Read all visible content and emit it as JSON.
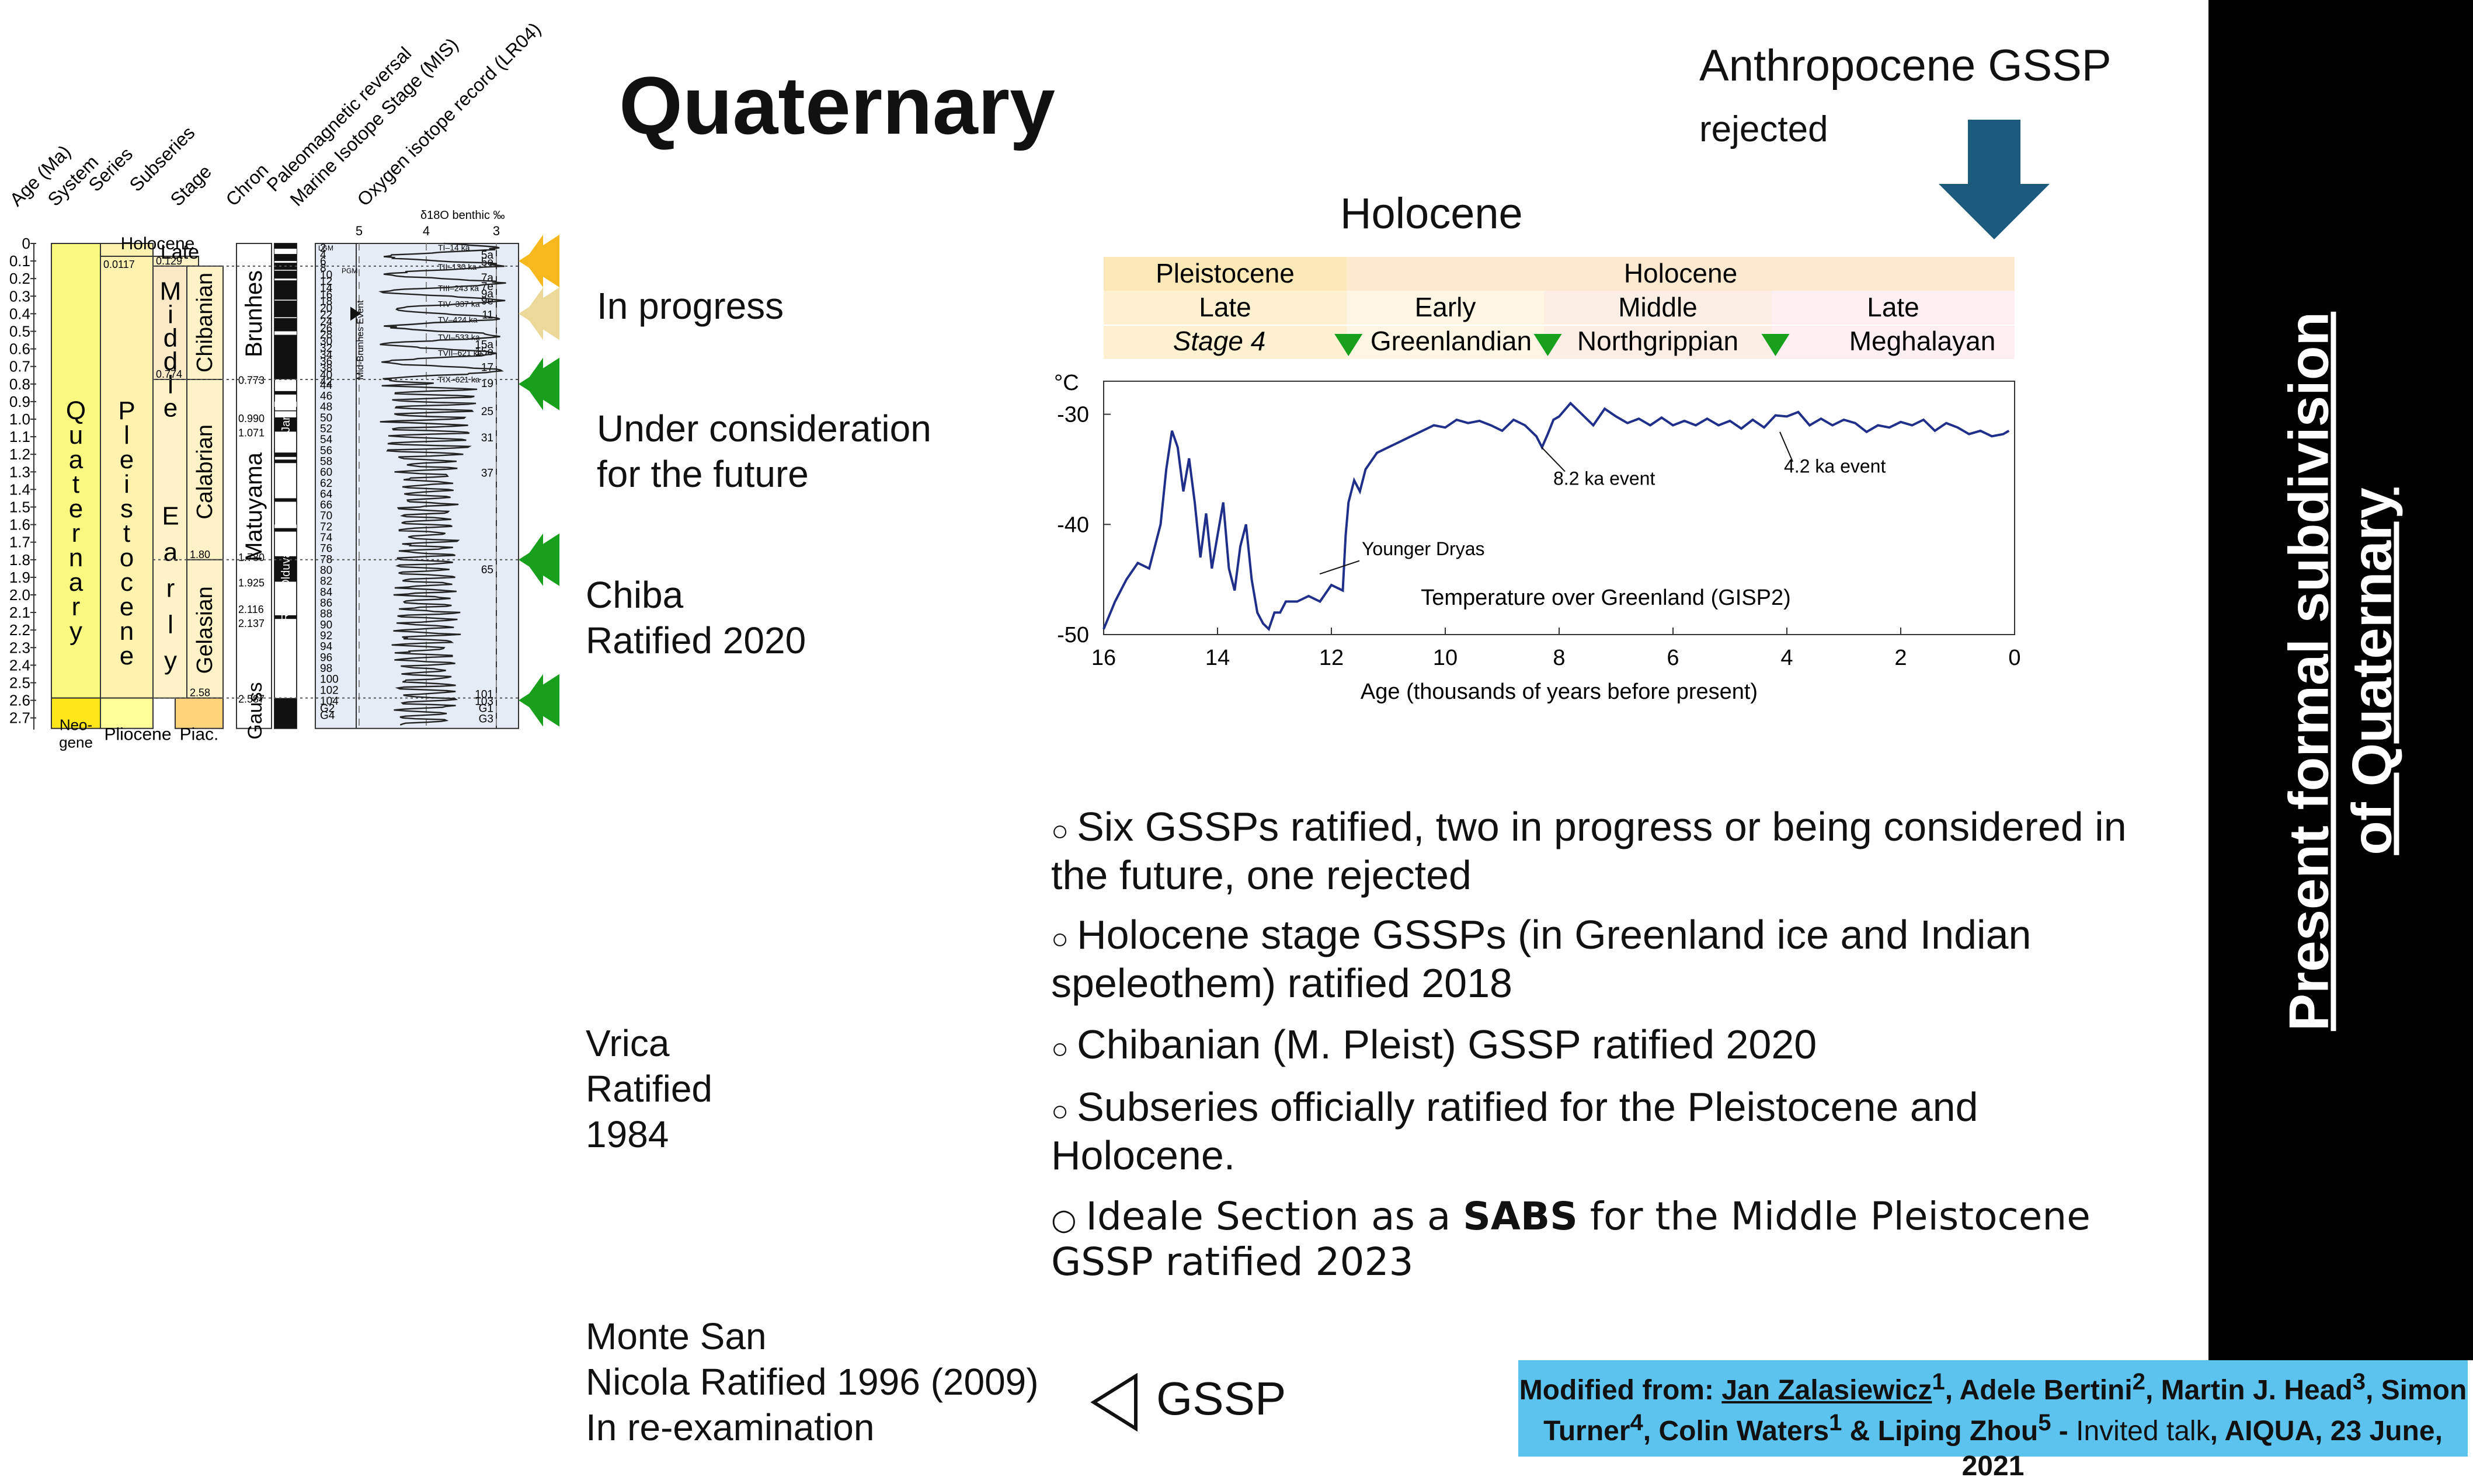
{
  "title": "Quaternary",
  "anthropocene": {
    "line1": "Anthropocene GSSP",
    "line2": "rejected"
  },
  "holocene_title": "Holocene",
  "strat_column": {
    "headers": [
      "Age (Ma)",
      "System",
      "Series",
      "Subseries",
      "Stage",
      "Chron",
      "Paleomagnetic reversal",
      "Marine Isotope Stage (MIS)",
      "Oxygen isotope record (LR04)"
    ],
    "o18_label": "δ18O benthic ‰",
    "o18_ticks": [
      "5",
      "4",
      "3"
    ],
    "age_ticks": [
      "0",
      "0.1",
      "0.2",
      "0.3",
      "0.4",
      "0.5",
      "0.6",
      "0.7",
      "0.8",
      "0.9",
      "1.0",
      "1.1",
      "1.2",
      "1.3",
      "1.4",
      "1.5",
      "1.6",
      "1.7",
      "1.8",
      "1.9",
      "2.0",
      "2.1",
      "2.2",
      "2.3",
      "2.4",
      "2.5",
      "2.6",
      "2.7"
    ],
    "system": "Quaternary",
    "system_neogene": "Neo-gene",
    "series": "Pleistocene",
    "series_pliocene": "Pliocene",
    "holocene": "Holocene",
    "holocene_age": "0.0117",
    "subseries": {
      "late": "Late",
      "middle": "Middle",
      "early": "Early"
    },
    "subseries_ages": {
      "late": "0.129",
      "middle": "0.774",
      "early": "2.58"
    },
    "stages": {
      "chibanian": "Chibanian",
      "calabrian": "Calabrian",
      "gelasian": "Gelasian",
      "piac": "Piac."
    },
    "stage_ages": {
      "calabrian": "1.80",
      "gelasian": "2.58"
    },
    "chrons": {
      "brunhes": "Brunhes",
      "matuyama": "Matuyama",
      "gauss": "Gauss"
    },
    "chron_ages": [
      "0.773",
      "0.990",
      "1.071",
      "1.780",
      "1.925",
      "2.116",
      "2.137",
      "2.587"
    ],
    "subchrons": {
      "jar": "Jar",
      "olduvai": "Olduvai",
      "r": "R"
    },
    "mis_left": [
      "2",
      "4",
      "6",
      "8",
      "10",
      "12",
      "14",
      "16",
      "18",
      "20",
      "22",
      "24",
      "26",
      "28",
      "30",
      "32",
      "34",
      "36",
      "38",
      "40",
      "42",
      "44",
      "46",
      "48",
      "50",
      "52",
      "54",
      "56",
      "58",
      "60",
      "62",
      "64",
      "66",
      "70",
      "72",
      "74",
      "76",
      "78",
      "80",
      "82",
      "84",
      "86",
      "88",
      "90",
      "92",
      "94",
      "96",
      "98",
      "100",
      "102",
      "104",
      "G2",
      "G4"
    ],
    "mis_right": [
      "5a",
      "5e",
      "7a",
      "7e",
      "9a",
      "9e",
      "11",
      "15a",
      "15e",
      "17",
      "19",
      "25",
      "31",
      "37",
      "65",
      "101",
      "103",
      "G1",
      "G3"
    ],
    "terminations": [
      "TI–14 ka",
      "TII–130 ka",
      "TIII–243 ka",
      "TIV–337 ka",
      "TV–424 ka",
      "TVI–533 ka",
      "TVII–621 ka",
      "TIX–621 ka"
    ],
    "lgm": "LGM",
    "pgm": "PGM",
    "mbe": "Mid-Brunhes Event"
  },
  "status_labels": [
    {
      "lines": [
        "In progress"
      ],
      "color": "#f6b81c"
    },
    {
      "lines": [
        "Under consideration",
        "for the future"
      ],
      "color": "#ecd999"
    },
    {
      "lines": [
        "Chiba",
        "Ratified 2020"
      ],
      "color": "#18a01c"
    },
    {
      "lines": [
        "Vrica",
        "Ratified",
        "1984"
      ],
      "color": "#18a01c"
    },
    {
      "lines": [
        "Monte San",
        "Nicola Ratified 1996 (2009)",
        "In re-examination"
      ],
      "color": "#18a01c"
    }
  ],
  "holo_table": {
    "row1": [
      "Pleistocene",
      "Holocene"
    ],
    "row2": [
      "Late",
      "Early",
      "Middle",
      "Late"
    ],
    "row3": [
      "Stage 4",
      "Greenlandian",
      "Northgrippian",
      "Meghalayan"
    ]
  },
  "chart_data": {
    "type": "line",
    "title": "Temperature over Greenland (GISP2)",
    "xlabel": "Age (thousands of years before present)",
    "ylabel": "°C",
    "xlim": [
      16,
      0
    ],
    "ylim": [
      -50,
      -27
    ],
    "xticks": [
      "16",
      "14",
      "12",
      "10",
      "8",
      "6",
      "4",
      "2",
      "0"
    ],
    "yticks": [
      "-30",
      "-40",
      "-50"
    ],
    "annotations": [
      "Younger Dryas",
      "8.2 ka event",
      "4.2 ka event"
    ],
    "series": [
      {
        "x": [
          16,
          15.8,
          15.6,
          15.4,
          15.2,
          15.0,
          14.9,
          14.8,
          14.7,
          14.6,
          14.5,
          14.4,
          14.3,
          14.2,
          14.1,
          14.0,
          13.9,
          13.8,
          13.7,
          13.6,
          13.5,
          13.4,
          13.3,
          13.2,
          13.1,
          13.0,
          12.9,
          12.8,
          12.6,
          12.4,
          12.2,
          12.0,
          11.8,
          11.75,
          11.7,
          11.6,
          11.5,
          11.4,
          11.2,
          11.0,
          10.8,
          10.6,
          10.4,
          10.2,
          10.0,
          9.8,
          9.6,
          9.4,
          9.2,
          9.0,
          8.8,
          8.6,
          8.4,
          8.3,
          8.2,
          8.1,
          8.0,
          7.8,
          7.6,
          7.4,
          7.2,
          7.0,
          6.8,
          6.6,
          6.4,
          6.2,
          6.0,
          5.8,
          5.6,
          5.4,
          5.2,
          5.0,
          4.8,
          4.6,
          4.4,
          4.2,
          4.0,
          3.8,
          3.6,
          3.4,
          3.2,
          3.0,
          2.8,
          2.6,
          2.4,
          2.2,
          2.0,
          1.8,
          1.6,
          1.4,
          1.2,
          1.0,
          0.8,
          0.6,
          0.4,
          0.2,
          0.1
        ],
        "y": [
          -49.5,
          -47,
          -45,
          -43.5,
          -44,
          -40,
          -35,
          -31.5,
          -33,
          -37,
          -34,
          -38,
          -43,
          -39,
          -44,
          -41,
          -38,
          -44,
          -46,
          -42,
          -40,
          -45,
          -48,
          -49,
          -49.5,
          -48,
          -48,
          -47,
          -47,
          -46.5,
          -47,
          -45.5,
          -46,
          -41,
          -38,
          -36,
          -37,
          -35,
          -33.5,
          -33,
          -32.5,
          -32,
          -31.5,
          -31,
          -31.2,
          -30.5,
          -30.8,
          -30.6,
          -31,
          -31.5,
          -30.5,
          -31,
          -32,
          -33,
          -31.8,
          -30.5,
          -30.2,
          -29,
          -30,
          -31,
          -29.5,
          -30.2,
          -30.8,
          -30.4,
          -31,
          -30.3,
          -31,
          -30.6,
          -31,
          -30.4,
          -31,
          -30.6,
          -31.3,
          -30.5,
          -31.2,
          -30.1,
          -30.2,
          -29.8,
          -31,
          -30.4,
          -31,
          -30.5,
          -30.8,
          -31.6,
          -31,
          -31.2,
          -30.7,
          -31,
          -30.5,
          -31.5,
          -30.8,
          -31.2,
          -31.8,
          -31.5,
          -32,
          -31.8,
          -31.5
        ]
      }
    ]
  },
  "bullets": [
    {
      "text": "Six GSSPs ratified, two in progress or being considered in the future, one rejected"
    },
    {
      "text": "Holocene stage GSSPs (in Greenland ice and Indian speleothem) ratified 2018"
    },
    {
      "text": "Chibanian (M. Pleist) GSSP ratified 2020"
    },
    {
      "text": "Subseries officially ratified for the Pleistocene and Holocene."
    },
    {
      "pre": "Ideale Section as a ",
      "bold": "SABS",
      "post": " for the Middle Pleistocene GSSP ratified 2023"
    }
  ],
  "gssp_legend": "GSSP",
  "side_title": {
    "line1": "Present formal subdivision",
    "line2": "of Quaternary"
  },
  "credit": {
    "prefix": "Modified from: ",
    "a1": "Jan Zalasiewicz",
    "s1": "1",
    "a2": ", Adele Bertini",
    "s2": "2",
    "a3": ", Martin J. Head",
    "s3": "3",
    "a4": ", Simon Turner",
    "s4": "4",
    "a5": ", Colin Waters",
    "s5": "1",
    "a6": " & Liping Zhou",
    "s6": "5",
    "dash": " - ",
    "talk": "Invited talk",
    "event": ", AIQUA, 23 June, 2021"
  },
  "colors": {
    "quaternary": "#f9f97f",
    "pleistocene": "#fff2ae",
    "stage": "#fff2c7",
    "neogene": "#ffe619",
    "pliocene": "#ffff99",
    "o18_bg": "#e6ecf5",
    "down_arrow": "#1b5a7c",
    "greenland_line": "#1f2f8a"
  }
}
